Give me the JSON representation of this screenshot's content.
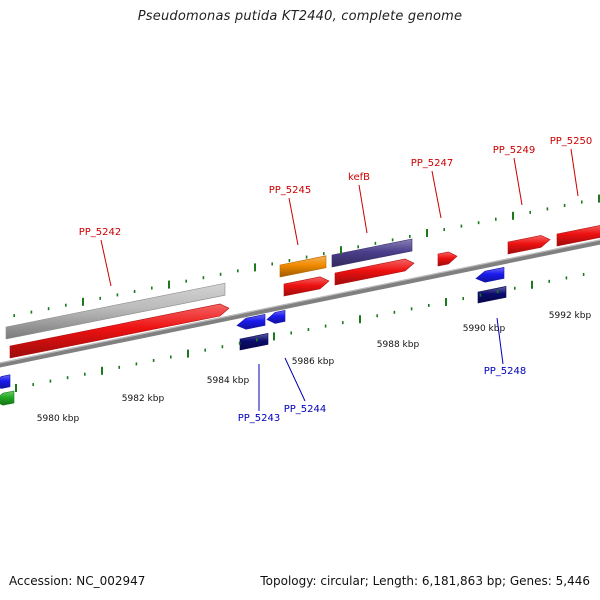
{
  "title": "Pseudomonas putida KT2440, complete genome",
  "footer": {
    "accession": "Accession: NC_002947",
    "stats": "Topology: circular; Length: 6,181,863 bp; Genes: 5,446"
  },
  "scale_labels": [
    "5980 kbp",
    "5982 kbp",
    "5984 kbp",
    "5986 kbp",
    "5988 kbp",
    "5990 kbp",
    "5992 kbp"
  ],
  "gene_labels_forward": [
    "PP_5242",
    "PP_5245",
    "kefB",
    "PP_5247",
    "PP_5249",
    "PP_5250"
  ],
  "gene_labels_reverse": [
    "PP_5243",
    "PP_5244",
    "PP_5248"
  ],
  "colors": {
    "cds": "#ee1111",
    "pseudo_gray": "#bbbbbb",
    "orange": "#f08a00",
    "purple": "#4b3f8c",
    "blue": "#1a1aee",
    "navy": "#0b0b6e",
    "green": "#22aa22",
    "tick": "#1b7a1b",
    "backbone": "#808080",
    "forward_label": "#cc0000",
    "reverse_label": "#0000bb"
  }
}
